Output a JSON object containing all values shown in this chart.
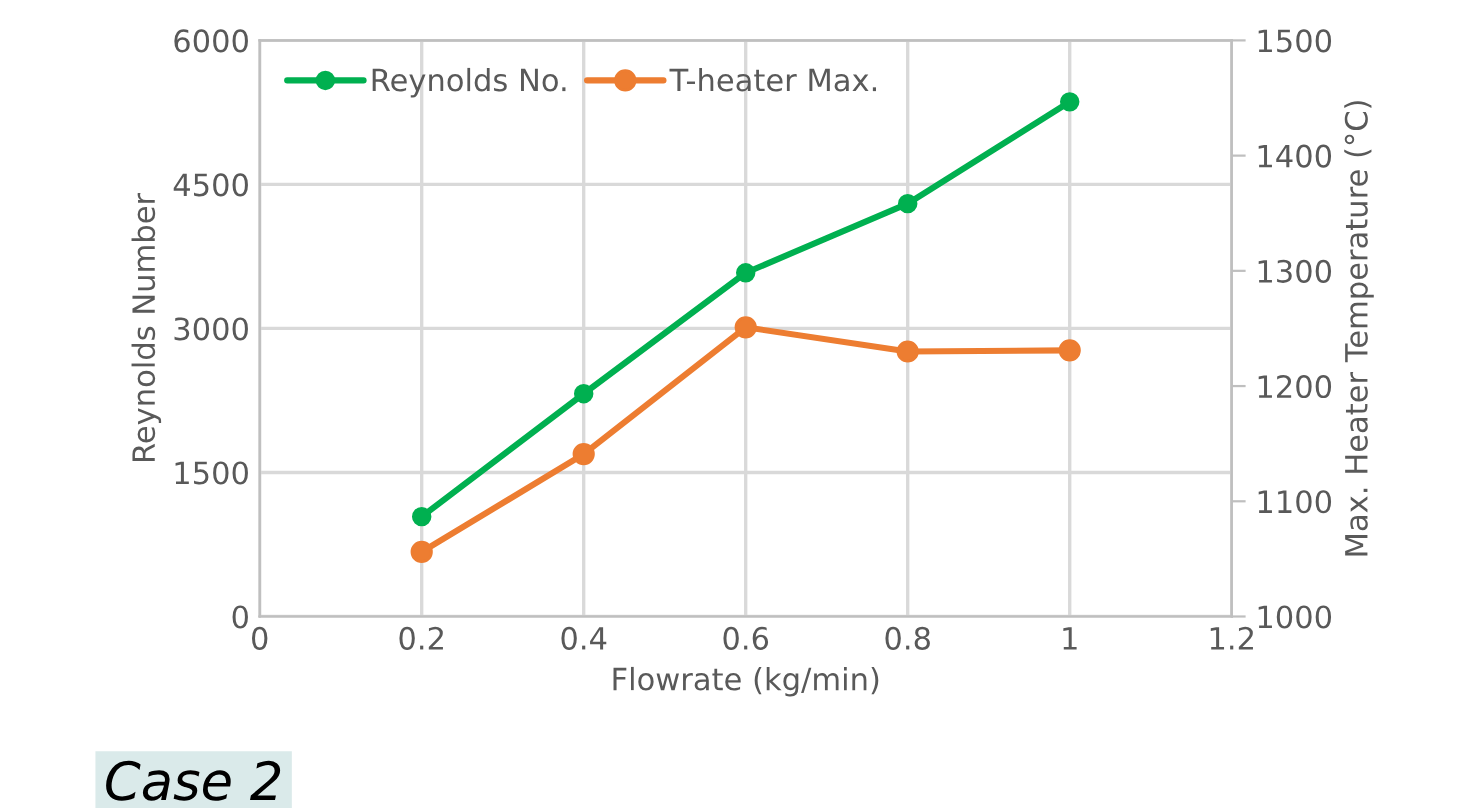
{
  "chart_data": {
    "type": "line",
    "xlabel": "Flowrate (kg/min)",
    "ylabel": "Reynolds Number",
    "y2label": "Max. Heater Temperature (°C)",
    "x": [
      0.2,
      0.4,
      0.6,
      0.8,
      1.0
    ],
    "series": [
      {
        "name": "Reynolds No.",
        "color": "#00b050",
        "values": [
          1040,
          2320,
          3580,
          4300,
          5360
        ]
      },
      {
        "name": "T-heater Max.",
        "color": "#ed7d31",
        "values": [
          1056,
          1141,
          1251,
          1230,
          1231
        ],
        "axis": "y2"
      }
    ],
    "xlim": [
      0,
      1.2
    ],
    "xticks": [
      0,
      0.2,
      0.4,
      0.6,
      0.8,
      {
        "value": 1.0,
        "label": "1"
      },
      1.2
    ],
    "ylim": [
      0,
      6000
    ],
    "yticks": [
      0,
      1500,
      3000,
      4500,
      6000
    ],
    "y2lim": [
      1000,
      1500
    ],
    "y2ticks": [
      1000,
      1100,
      1200,
      1300,
      1400,
      1500
    ],
    "grid": true,
    "legend": "top left",
    "marker": "circle",
    "line_style": "solid",
    "annotations": [
      "Case 2"
    ]
  }
}
